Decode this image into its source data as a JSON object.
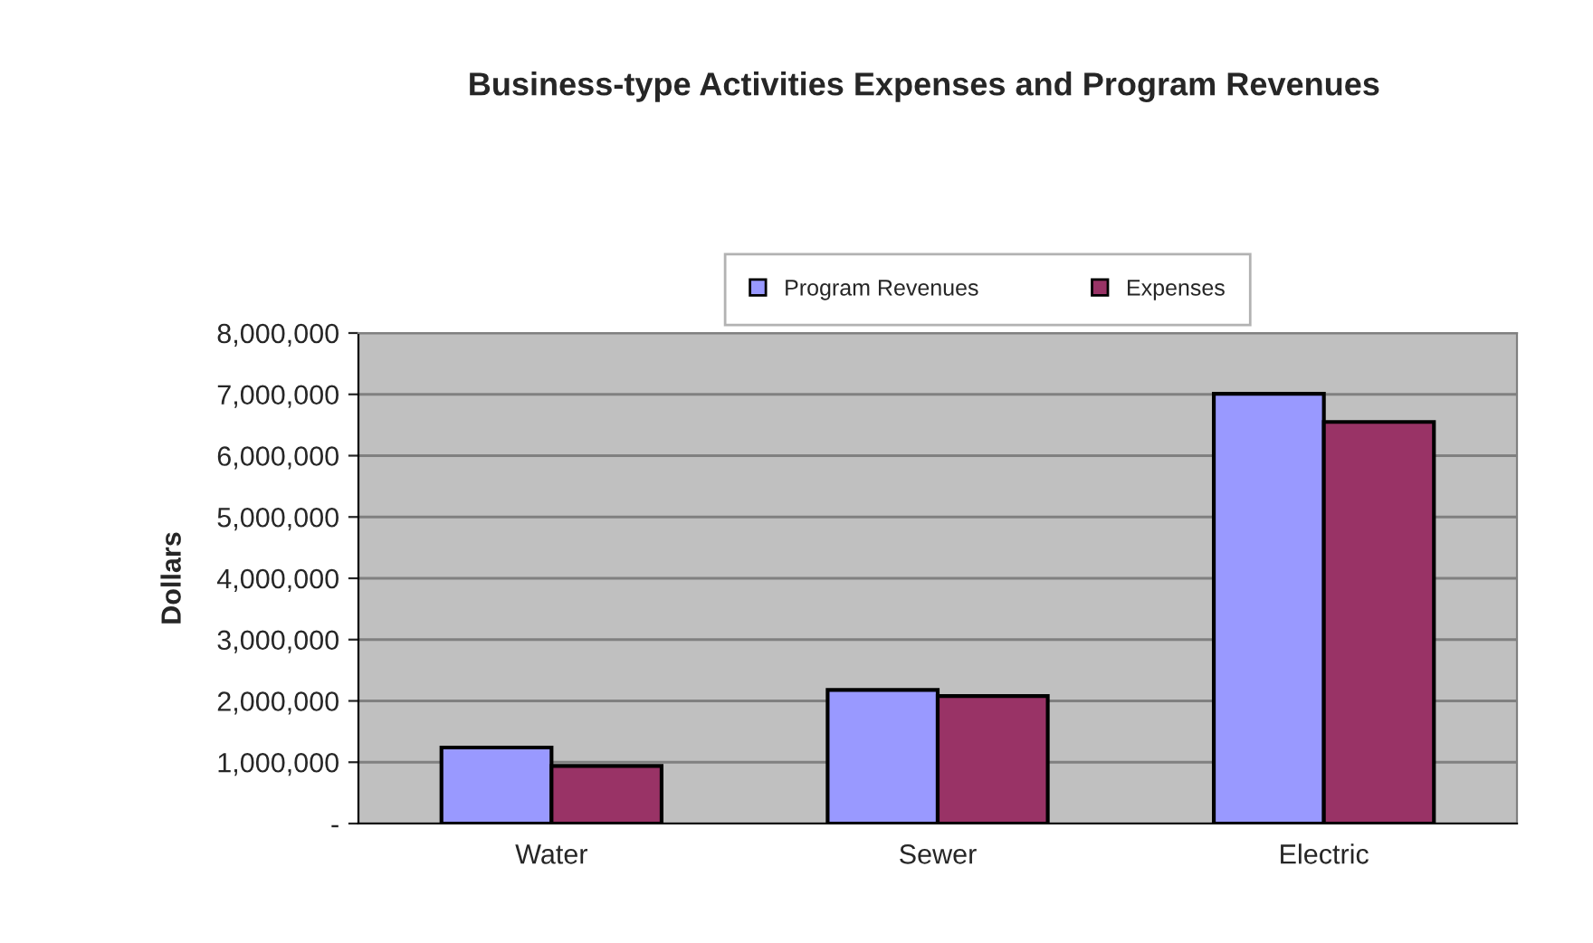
{
  "chart_data": {
    "type": "bar",
    "title": "Business-type Activities Expenses and Program Revenues",
    "ylabel": "Dollars",
    "categories": [
      "Water",
      "Sewer",
      "Electric"
    ],
    "series": [
      {
        "name": "Program Revenues",
        "color": "#9999ff",
        "values": [
          1240000,
          2180000,
          7010000
        ]
      },
      {
        "name": "Expenses",
        "color": "#993366",
        "values": [
          940000,
          2080000,
          6550000
        ]
      }
    ],
    "ylim": [
      0,
      8000000
    ],
    "yticks": [
      {
        "value": 0,
        "label": "-"
      },
      {
        "value": 1000000,
        "label": "1,000,000"
      },
      {
        "value": 2000000,
        "label": "2,000,000"
      },
      {
        "value": 3000000,
        "label": "3,000,000"
      },
      {
        "value": 4000000,
        "label": "4,000,000"
      },
      {
        "value": 5000000,
        "label": "5,000,000"
      },
      {
        "value": 6000000,
        "label": "6,000,000"
      },
      {
        "value": 7000000,
        "label": "7,000,000"
      },
      {
        "value": 8000000,
        "label": "8,000,000"
      }
    ],
    "grid": "y",
    "legend": "top"
  }
}
